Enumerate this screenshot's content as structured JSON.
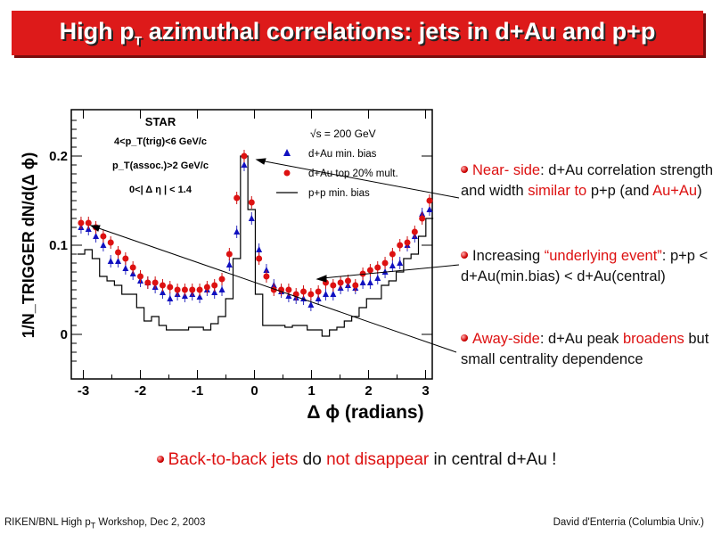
{
  "slide": {
    "title_pre": "High p",
    "title_sub": "T",
    "title_post": " azimuthal correlations: jets in d+Au and p+p"
  },
  "bullets": [
    {
      "parts": [
        [
          "Near- side",
          true
        ],
        [
          ": d+Au correlation strength and width ",
          false
        ],
        [
          "similar to",
          true
        ],
        [
          " p+p (and ",
          false
        ],
        [
          "Au+Au",
          true
        ],
        [
          ")",
          false
        ]
      ]
    },
    {
      "parts": [
        [
          "Increasing ",
          false
        ],
        [
          "“underlying event”",
          true
        ],
        [
          ": p+p < d+Au(min.bias) < d+Au(central)",
          false
        ]
      ]
    },
    {
      "parts": [
        [
          "Away-side",
          true
        ],
        [
          ": d+Au peak ",
          false
        ],
        [
          "broadens",
          true
        ],
        [
          " but small centrality dependence",
          false
        ]
      ]
    }
  ],
  "conclusion": {
    "parts": [
      [
        "Back-to-back jets",
        true
      ],
      [
        " do ",
        false
      ],
      [
        "not disappear",
        true
      ],
      [
        " in central d+Au !",
        false
      ]
    ]
  },
  "footer": {
    "left_pre": "RIKEN/BNL High p",
    "left_sub": "T",
    "left_post": " Workshop, Dec 2, 2003",
    "right": "David d'Enterria (Columbia Univ.)"
  },
  "colors": {
    "title_bg": "#dd1a1a",
    "emphasis": "#dd1111",
    "dAu_minbias": "#1010c0",
    "dAu_central": "#dd1111",
    "pp": "#000000"
  },
  "chart_data": {
    "type": "scatter",
    "xlabel": "Δ ϕ (radians)",
    "ylabel": "1/N_TRIGGER dN/d(Δ ϕ)",
    "xlim": [
      -3.14,
      3.14
    ],
    "ylim": [
      -0.04,
      0.25
    ],
    "xticks": [
      "-3",
      "-2",
      "-1",
      "0",
      "1",
      "2",
      "3"
    ],
    "yticks": [
      "0",
      "0.1",
      "0.2"
    ],
    "annotations": [
      "STAR",
      "4<p_T(trig)<6 GeV/c",
      "p_T(assoc.)>2 GeV/c",
      "0<| Δ η | < 1.4",
      "√s = 200 GeV"
    ],
    "legend": {
      "placement": "top-right",
      "entries": [
        {
          "name": "d+Au min. bias",
          "marker": "triangle"
        },
        {
          "name": "d+Au top 20% mult.",
          "marker": "circle"
        },
        {
          "name": "p+p min. bias",
          "marker": "line"
        }
      ]
    },
    "x": [
      -3.04,
      -2.91,
      -2.78,
      -2.65,
      -2.52,
      -2.39,
      -2.26,
      -2.13,
      -2.0,
      -1.87,
      -1.74,
      -1.61,
      -1.48,
      -1.35,
      -1.22,
      -1.09,
      -0.96,
      -0.83,
      -0.7,
      -0.57,
      -0.44,
      -0.31,
      -0.18,
      -0.05,
      0.08,
      0.21,
      0.34,
      0.47,
      0.6,
      0.73,
      0.86,
      0.99,
      1.12,
      1.25,
      1.38,
      1.51,
      1.64,
      1.77,
      1.9,
      2.03,
      2.16,
      2.29,
      2.42,
      2.55,
      2.68,
      2.81,
      2.94,
      3.07
    ],
    "series": [
      {
        "name": "d+Au min. bias",
        "values": [
          0.12,
          0.118,
          0.11,
          0.1,
          0.082,
          0.082,
          0.074,
          0.068,
          0.06,
          0.058,
          0.053,
          0.047,
          0.04,
          0.045,
          0.043,
          0.045,
          0.042,
          0.05,
          0.047,
          0.05,
          0.078,
          0.115,
          0.19,
          0.13,
          0.095,
          0.072,
          0.055,
          0.048,
          0.043,
          0.041,
          0.04,
          0.033,
          0.04,
          0.045,
          0.045,
          0.052,
          0.055,
          0.052,
          0.058,
          0.058,
          0.063,
          0.07,
          0.077,
          0.08,
          0.1,
          0.11,
          0.135,
          0.14
        ]
      },
      {
        "name": "d+Au top 20% mult.",
        "values": [
          0.125,
          0.125,
          0.12,
          0.11,
          0.103,
          0.092,
          0.085,
          0.075,
          0.065,
          0.058,
          0.058,
          0.055,
          0.053,
          0.05,
          0.05,
          0.05,
          0.05,
          0.053,
          0.055,
          0.062,
          0.09,
          0.153,
          0.2,
          0.148,
          0.085,
          0.065,
          0.05,
          0.05,
          0.05,
          0.045,
          0.048,
          0.045,
          0.048,
          0.058,
          0.055,
          0.058,
          0.06,
          0.055,
          0.068,
          0.072,
          0.075,
          0.08,
          0.09,
          0.1,
          0.103,
          0.115,
          0.13,
          0.15
        ]
      },
      {
        "name": "p+p min. bias",
        "values": [
          0.09,
          0.095,
          0.085,
          0.065,
          0.06,
          0.055,
          0.045,
          0.045,
          0.03,
          0.015,
          0.02,
          0.01,
          0.005,
          0.005,
          0.005,
          0.008,
          0.008,
          0.005,
          0.012,
          0.02,
          0.04,
          0.085,
          0.2,
          0.14,
          0.045,
          0.01,
          0.01,
          0.01,
          0.008,
          0.01,
          0.01,
          0.005,
          0.005,
          -0.002,
          0.005,
          0.008,
          0.015,
          0.02,
          0.03,
          0.04,
          0.04,
          0.055,
          0.06,
          0.07,
          0.085,
          0.09,
          0.11,
          0.13
        ]
      }
    ]
  }
}
